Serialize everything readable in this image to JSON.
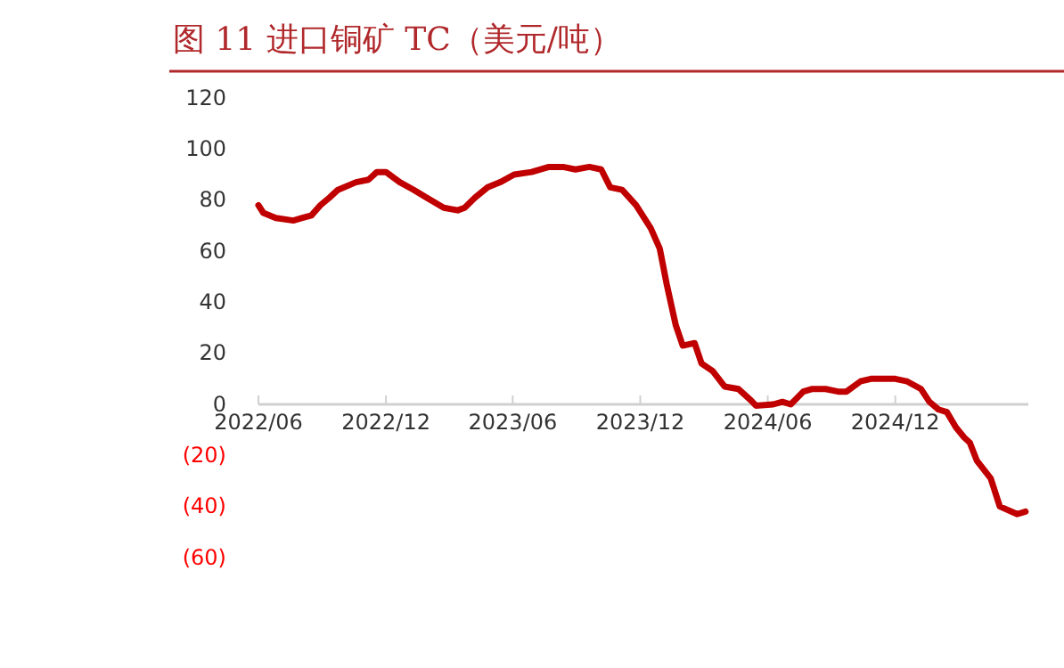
{
  "chart_data": {
    "type": "line",
    "title": "图 11  进口铜矿 TC（美元/吨）",
    "x": [
      "2022-06-01",
      "2022-06-08",
      "2022-06-26",
      "2022-07-21",
      "2022-08-03",
      "2022-08-16",
      "2022-08-29",
      "2022-09-11",
      "2022-09-23",
      "2022-10-19",
      "2022-11-06",
      "2022-11-18",
      "2022-12-01",
      "2022-12-21",
      "2023-01-10",
      "2023-01-28",
      "2023-02-22",
      "2023-03-14",
      "2023-03-24",
      "2023-04-08",
      "2023-04-26",
      "2023-05-14",
      "2023-06-03",
      "2023-06-28",
      "2023-07-23",
      "2023-08-12",
      "2023-08-30",
      "2023-09-19",
      "2023-10-06",
      "2023-10-19",
      "2023-11-05",
      "2023-11-25",
      "2023-12-16",
      "2023-12-29",
      "2024-01-08",
      "2024-01-21",
      "2024-01-31",
      "2024-02-17",
      "2024-02-27",
      "2024-03-14",
      "2024-03-31",
      "2024-04-20",
      "2024-05-08",
      "2024-05-15",
      "2024-06-09",
      "2024-06-22",
      "2024-07-04",
      "2024-07-22",
      "2024-08-03",
      "2024-08-23",
      "2024-09-10",
      "2024-09-22",
      "2024-10-12",
      "2024-10-27",
      "2024-11-12",
      "2024-12-01",
      "2024-12-18",
      "2025-01-07",
      "2025-01-19",
      "2025-02-01",
      "2025-02-13",
      "2025-02-26",
      "2025-03-10",
      "2025-03-18",
      "2025-03-28",
      "2025-04-17",
      "2025-04-30",
      "2025-05-25",
      "2025-06-06"
    ],
    "series": [
      {
        "color": "#c00000",
        "values": [
          78,
          75,
          73,
          72,
          73,
          74,
          78,
          81,
          84,
          87,
          88,
          91,
          91,
          87,
          84,
          81,
          77,
          76,
          77,
          81,
          85,
          87,
          90,
          91,
          93,
          93,
          92,
          93,
          92,
          85,
          84,
          78,
          69,
          61,
          47,
          31,
          23,
          24,
          16,
          13,
          7,
          6,
          1.5,
          -0.5,
          0,
          1,
          0,
          5,
          6,
          6,
          5,
          5,
          9,
          10,
          10,
          10,
          9,
          6,
          1,
          -2,
          -3,
          -9,
          -13,
          -15,
          -22,
          -29,
          -40,
          -43,
          -42
        ]
      }
    ],
    "xlim": [
      "2022-06-01",
      "2025-06-10"
    ],
    "xticks": [
      {
        "value": "2022-06-01",
        "label": "2022/06"
      },
      {
        "value": "2022-12-01",
        "label": "2022/12"
      },
      {
        "value": "2023-06-01",
        "label": "2023/06"
      },
      {
        "value": "2023-12-01",
        "label": "2023/12"
      },
      {
        "value": "2024-06-01",
        "label": "2024/06"
      },
      {
        "value": "2024-12-01",
        "label": "2024/12"
      }
    ],
    "ylim": [
      -60,
      120
    ],
    "yticks": [
      {
        "value": -60,
        "label": "(60)"
      },
      {
        "value": -40,
        "label": "(40)"
      },
      {
        "value": -20,
        "label": "(20)"
      },
      0,
      20,
      40,
      60,
      80,
      100,
      120
    ],
    "line_style": "solid"
  }
}
